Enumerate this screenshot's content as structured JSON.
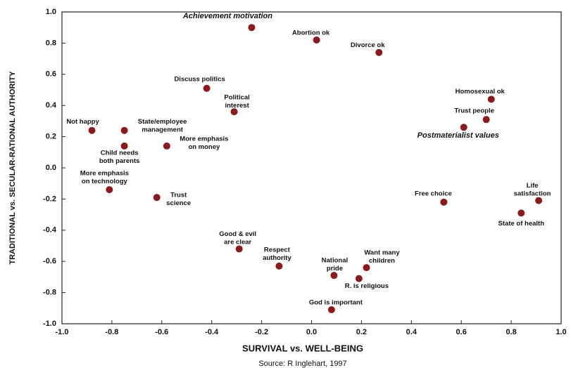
{
  "chart_data": {
    "type": "scatter",
    "xlabel": "SURVIVAL vs. WELL-BEING",
    "ylabel": "TRADITIONAL vs. SECULAR-RATIONAL AUTHORITY",
    "source": "Source: R Inglehart, 1997",
    "color": "#8b1a1a",
    "labels": [
      [
        "Achievement motivation"
      ],
      [
        "Abortion ok"
      ],
      [
        "Divorce ok"
      ],
      [
        "Discuss politics"
      ],
      [
        "Political",
        "interest"
      ],
      [
        "Homosexual ok"
      ],
      [
        "Trust people"
      ],
      [
        "Postmaterialist values"
      ],
      [
        "Not happy"
      ],
      [
        "State/employee",
        "management"
      ],
      [
        "Child needs",
        "both parents"
      ],
      [
        "More emphasis",
        "on money"
      ],
      [
        "More emphasis",
        "on technology"
      ],
      [
        "Trust",
        "science"
      ],
      [
        "Free choice"
      ],
      [
        "Life",
        "satisfaction"
      ],
      [
        "State of health"
      ],
      [
        "Good & evil",
        "are clear"
      ],
      [
        "Respect",
        "authority"
      ],
      [
        "Want many",
        "children"
      ],
      [
        "National",
        "pride"
      ],
      [
        "R. is religious"
      ],
      [
        "God is important"
      ]
    ],
    "x": [
      -0.24,
      0.02,
      0.27,
      -0.42,
      -0.31,
      0.72,
      0.7,
      0.61,
      -0.88,
      -0.75,
      -0.75,
      -0.58,
      -0.81,
      -0.62,
      0.53,
      0.91,
      0.84,
      -0.29,
      -0.13,
      0.22,
      0.09,
      0.19,
      0.08
    ],
    "y": [
      0.9,
      0.82,
      0.74,
      0.51,
      0.36,
      0.44,
      0.31,
      0.26,
      0.24,
      0.24,
      0.14,
      0.14,
      -0.14,
      -0.19,
      -0.22,
      -0.21,
      -0.29,
      -0.52,
      -0.63,
      -0.64,
      -0.69,
      -0.71,
      -0.91
    ],
    "xlim": [
      -1,
      1
    ],
    "ylim": [
      -1,
      1
    ],
    "xticks": [
      {
        "value": -1,
        "label": "-1.0"
      },
      -0.8,
      -0.6,
      -0.4,
      -0.2,
      {
        "value": 0,
        "label": "0.0"
      },
      0.2,
      0.4,
      0.6,
      0.8,
      {
        "value": 1,
        "label": "1.0"
      }
    ],
    "yticks": [
      {
        "value": -1,
        "label": "-1.0"
      },
      -0.8,
      -0.6,
      -0.4,
      -0.2,
      {
        "value": 0,
        "label": "0.0"
      },
      0.2,
      0.4,
      0.6,
      0.8,
      {
        "value": 1,
        "label": "1.0"
      }
    ]
  }
}
